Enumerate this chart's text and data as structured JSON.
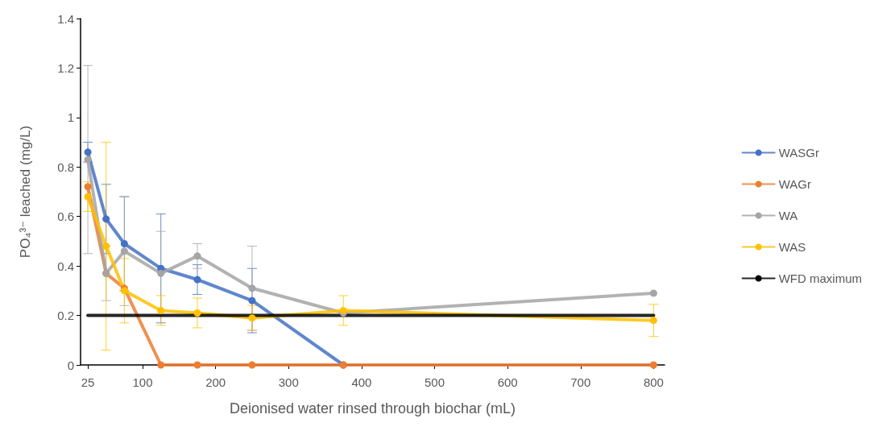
{
  "chart_data": {
    "type": "line",
    "xlabel": "Deionised water rinsed through biochar (mL)",
    "ylabel": "PO₄³⁻ leached (mg/L)",
    "x": [
      25,
      50,
      75,
      125,
      175,
      250,
      375,
      800
    ],
    "xlim": [
      15,
      815
    ],
    "xticks": [
      25,
      100,
      200,
      300,
      400,
      500,
      600,
      700,
      800
    ],
    "ylim": [
      0,
      1.4
    ],
    "yticks": [
      0,
      0.2,
      0.4,
      0.6,
      0.8,
      1,
      1.2,
      1.4
    ],
    "grid": false,
    "legend": "right",
    "marker": "circle",
    "line_style": "solid",
    "series": [
      {
        "name": "WASGr",
        "color": "#4472c4",
        "values": [
          0.86,
          0.59,
          0.49,
          0.39,
          0.345,
          0.26,
          0,
          null
        ],
        "errors": [
          0.04,
          0.14,
          0.19,
          0.22,
          0.06,
          0.13,
          null,
          null
        ]
      },
      {
        "name": "WAGr",
        "color": "#ed7d31",
        "values": [
          0.72,
          0.37,
          0.31,
          0,
          0,
          0,
          0,
          0
        ]
      },
      {
        "name": "WA",
        "color": "#a5a5a5",
        "values": [
          0.83,
          0.37,
          0.46,
          0.37,
          0.44,
          0.31,
          0.21,
          0.29
        ],
        "errors": [
          0.38,
          0.11,
          0.22,
          0.17,
          0.05,
          0.17,
          null,
          null
        ]
      },
      {
        "name": "WAS",
        "color": "#ffc000",
        "values": [
          0.68,
          0.48,
          0.3,
          0.22,
          0.21,
          0.19,
          0.22,
          0.18
        ],
        "errors": [
          0.06,
          0.42,
          0.13,
          0.06,
          0.06,
          0.05,
          0.06,
          0.065
        ]
      },
      {
        "name": "WFD maximum",
        "color": "#000000",
        "x": [
          25,
          800
        ],
        "values": [
          0.2,
          0.2
        ],
        "marker": "none"
      }
    ]
  }
}
